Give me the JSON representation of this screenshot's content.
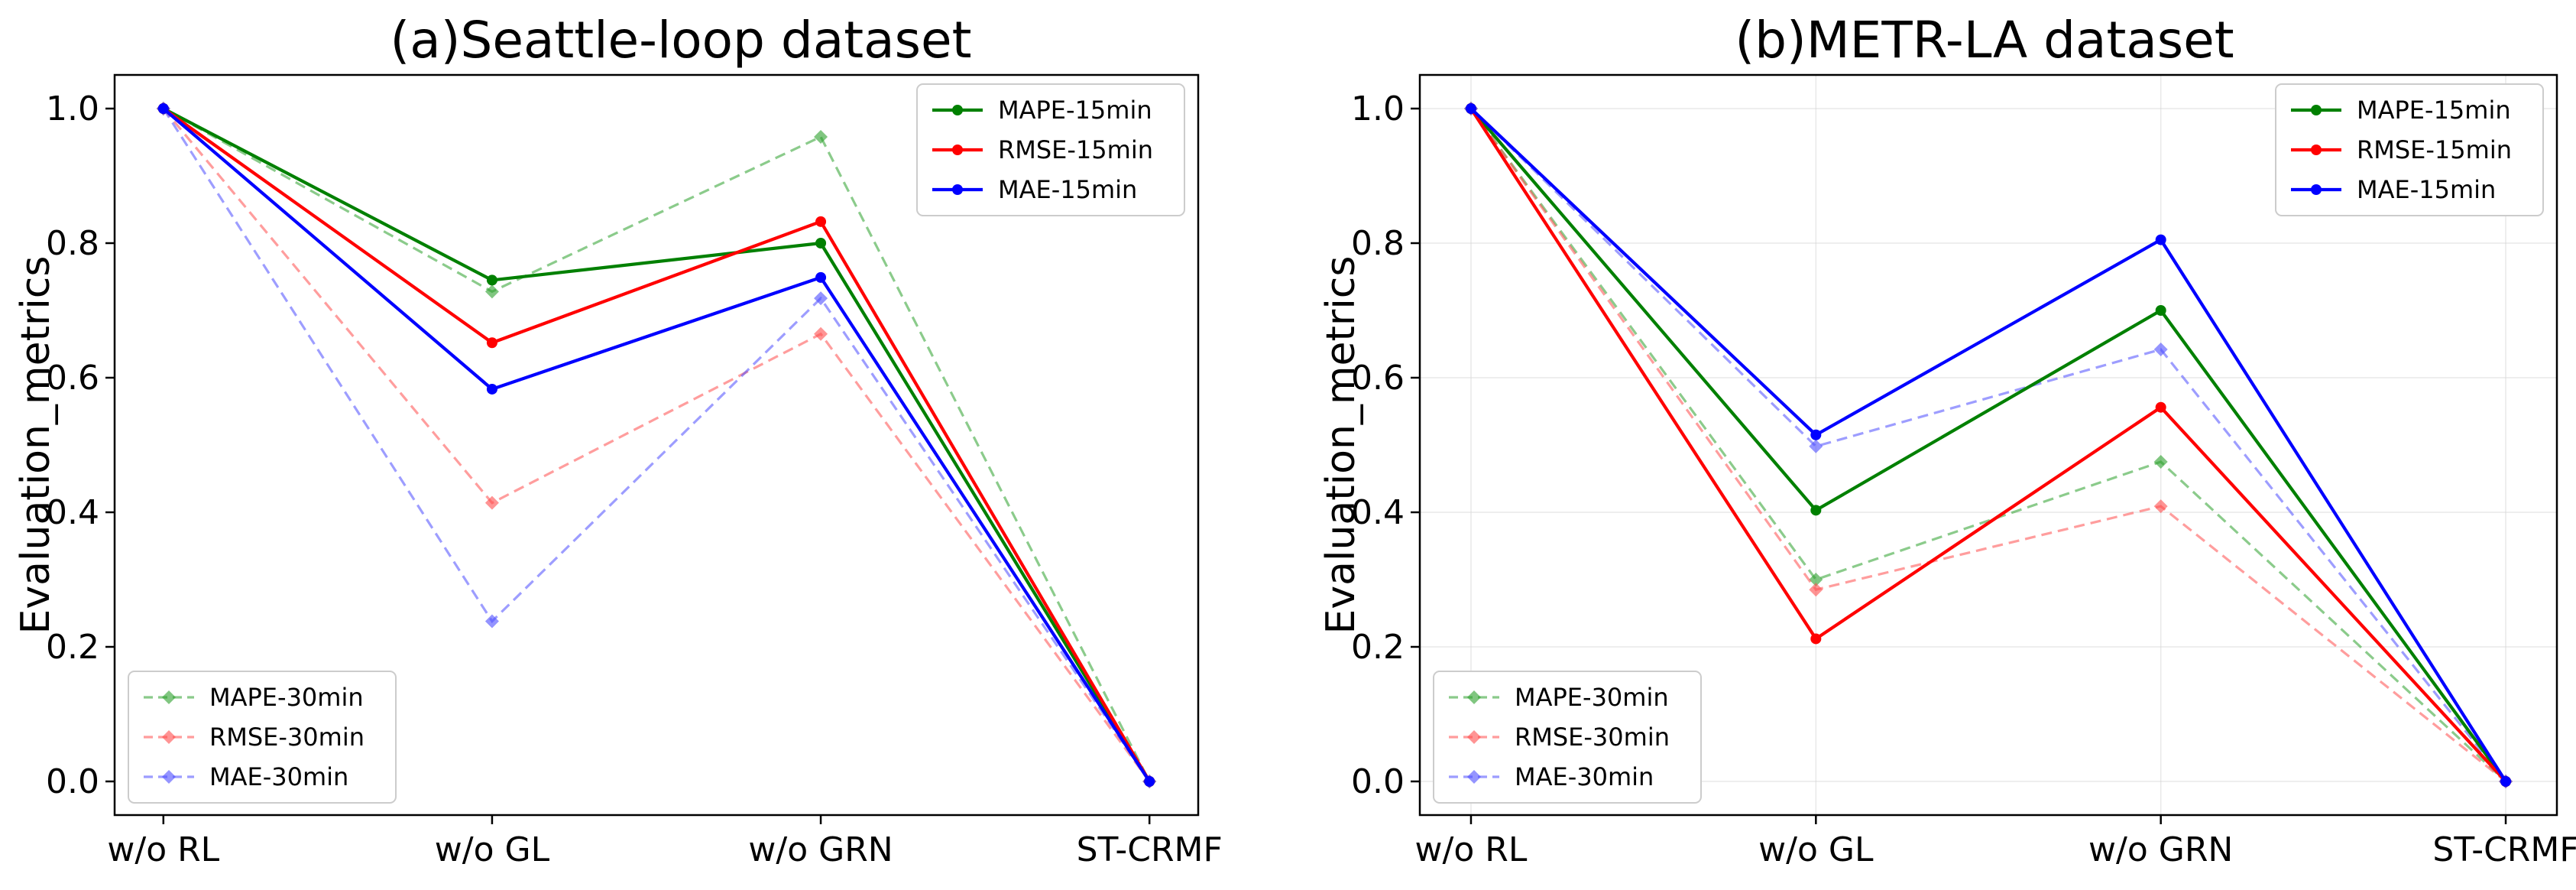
{
  "chart_data": [
    {
      "type": "line",
      "title": "(a)Seattle-loop dataset",
      "xlabel": "",
      "ylabel": "Evaluation_metrics",
      "categories": [
        "w/o RL",
        "w/o GL",
        "w/o GRN",
        "ST-CRMF"
      ],
      "ylim": [
        -0.05,
        1.05
      ],
      "yticks": [
        0.0,
        0.2,
        0.4,
        0.6,
        0.8,
        1.0
      ],
      "yticklabels": [
        "0.0",
        "0.2",
        "0.4",
        "0.6",
        "0.8",
        "1.0"
      ],
      "grid": false,
      "series": [
        {
          "name": "MAPE-15min",
          "color": "#008000",
          "style": "solid",
          "marker": "circle",
          "values": [
            1.0,
            0.745,
            0.8,
            0.0
          ]
        },
        {
          "name": "RMSE-15min",
          "color": "#ff0000",
          "style": "solid",
          "marker": "circle",
          "values": [
            1.0,
            0.652,
            0.832,
            0.0
          ]
        },
        {
          "name": "MAE-15min",
          "color": "#0000ff",
          "style": "solid",
          "marker": "circle",
          "values": [
            1.0,
            0.583,
            0.749,
            0.0
          ]
        },
        {
          "name": "MAPE-30min",
          "color": "#2ca02c",
          "style": "dashed",
          "marker": "diamond",
          "values": [
            1.0,
            0.728,
            0.958,
            0.0
          ]
        },
        {
          "name": "RMSE-30min",
          "color": "#ff4d4d",
          "style": "dashed",
          "marker": "diamond",
          "values": [
            1.0,
            0.414,
            0.665,
            0.0
          ]
        },
        {
          "name": "MAE-30min",
          "color": "#4d4dff",
          "style": "dashed",
          "marker": "diamond",
          "values": [
            1.0,
            0.238,
            0.718,
            0.0
          ]
        }
      ],
      "legends": [
        {
          "position": "upper-right",
          "entries": [
            "MAPE-15min",
            "RMSE-15min",
            "MAE-15min"
          ]
        },
        {
          "position": "lower-left",
          "entries": [
            "MAPE-30min",
            "RMSE-30min",
            "MAE-30min"
          ]
        }
      ]
    },
    {
      "type": "line",
      "title": "(b)METR-LA dataset",
      "xlabel": "",
      "ylabel": "Evaluation_metrics",
      "categories": [
        "w/o RL",
        "w/o GL",
        "w/o GRN",
        "ST-CRMF"
      ],
      "ylim": [
        -0.05,
        1.05
      ],
      "yticks": [
        0.0,
        0.2,
        0.4,
        0.6,
        0.8,
        1.0
      ],
      "yticklabels": [
        "0.0",
        "0.2",
        "0.4",
        "0.6",
        "0.8",
        "1.0"
      ],
      "grid": true,
      "series": [
        {
          "name": "MAPE-15min",
          "color": "#008000",
          "style": "solid",
          "marker": "circle",
          "values": [
            1.0,
            0.403,
            0.7,
            0.0
          ]
        },
        {
          "name": "RMSE-15min",
          "color": "#ff0000",
          "style": "solid",
          "marker": "circle",
          "values": [
            1.0,
            0.212,
            0.556,
            0.0
          ]
        },
        {
          "name": "MAE-15min",
          "color": "#0000ff",
          "style": "solid",
          "marker": "circle",
          "values": [
            1.0,
            0.515,
            0.805,
            0.0
          ]
        },
        {
          "name": "MAPE-30min",
          "color": "#2ca02c",
          "style": "dashed",
          "marker": "diamond",
          "values": [
            1.0,
            0.3,
            0.475,
            0.0
          ]
        },
        {
          "name": "RMSE-30min",
          "color": "#ff4d4d",
          "style": "dashed",
          "marker": "diamond",
          "values": [
            1.0,
            0.285,
            0.409,
            0.0
          ]
        },
        {
          "name": "MAE-30min",
          "color": "#4d4dff",
          "style": "dashed",
          "marker": "diamond",
          "values": [
            1.0,
            0.498,
            0.642,
            0.0
          ]
        }
      ],
      "legends": [
        {
          "position": "upper-right",
          "entries": [
            "MAPE-15min",
            "RMSE-15min",
            "MAE-15min"
          ]
        },
        {
          "position": "lower-left",
          "entries": [
            "MAPE-30min",
            "RMSE-30min",
            "MAE-30min"
          ]
        }
      ]
    }
  ]
}
